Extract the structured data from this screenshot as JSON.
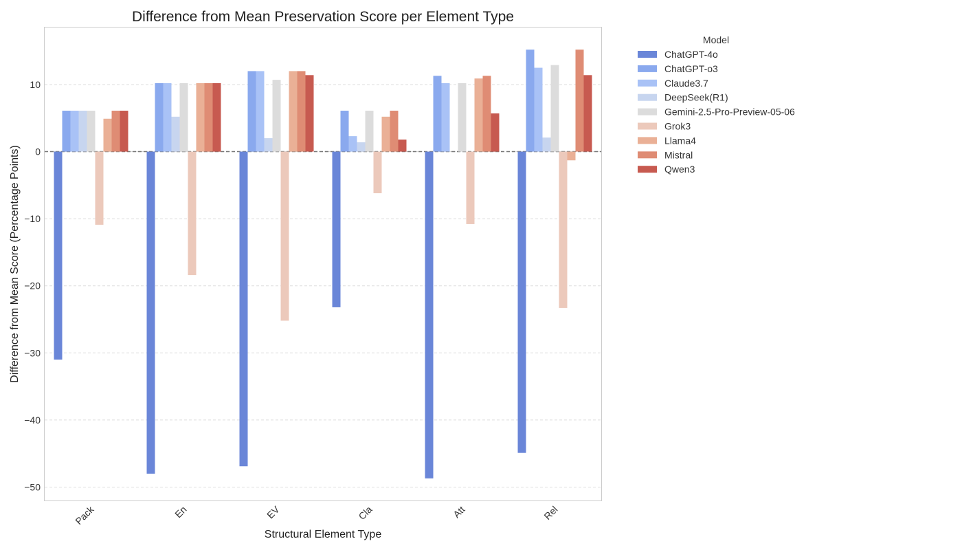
{
  "chart_data": {
    "type": "bar",
    "title": "Difference from Mean Preservation Score per Element Type",
    "xlabel": "Structural Element Type",
    "ylabel": "Difference from Mean Score (Percentage Points)",
    "categories": [
      "Pack",
      "En",
      "EV",
      "Cla",
      "Att",
      "Rel"
    ],
    "ylim": [
      -52,
      18.5
    ],
    "yticks": [
      10,
      0,
      -10,
      -20,
      -30,
      -40,
      -50
    ],
    "ytick_labels": [
      "10",
      "0",
      "−10",
      "−20",
      "−30",
      "−40",
      "−50"
    ],
    "grid": true,
    "zero_line": "dashed",
    "legend": {
      "title": "Model",
      "placement": "outside-right"
    },
    "series": [
      {
        "name": "ChatGPT-4o",
        "color": "#6a86d8",
        "values": [
          -31.0,
          -48.0,
          -46.9,
          -23.2,
          -48.7,
          -44.9
        ]
      },
      {
        "name": "ChatGPT-o3",
        "color": "#8aa9ee",
        "values": [
          6.1,
          10.2,
          12.0,
          6.1,
          11.3,
          15.2
        ]
      },
      {
        "name": "Claude3.7",
        "color": "#a9c2f6",
        "values": [
          6.1,
          10.2,
          12.0,
          2.3,
          10.2,
          12.5
        ]
      },
      {
        "name": "DeepSeek(R1)",
        "color": "#c7d5ef",
        "values": [
          6.1,
          5.2,
          2.0,
          1.4,
          0.0,
          2.1
        ]
      },
      {
        "name": "Gemini-2.5-Pro-Preview-05-06",
        "color": "#dcdcdc",
        "values": [
          6.1,
          10.2,
          10.7,
          6.1,
          10.2,
          12.9
        ]
      },
      {
        "name": "Grok3",
        "color": "#ecc9bb",
        "values": [
          -10.9,
          -18.4,
          -25.2,
          -6.2,
          -10.8,
          -23.3
        ]
      },
      {
        "name": "Llama4",
        "color": "#eab096",
        "values": [
          4.9,
          10.2,
          12.0,
          5.2,
          10.9,
          -1.3
        ]
      },
      {
        "name": "Mistral",
        "color": "#df8c74",
        "values": [
          6.1,
          10.2,
          12.0,
          6.1,
          11.3,
          15.2
        ]
      },
      {
        "name": "Qwen3",
        "color": "#c75a50",
        "values": [
          6.1,
          10.2,
          11.4,
          1.8,
          5.7,
          11.4
        ]
      }
    ]
  }
}
